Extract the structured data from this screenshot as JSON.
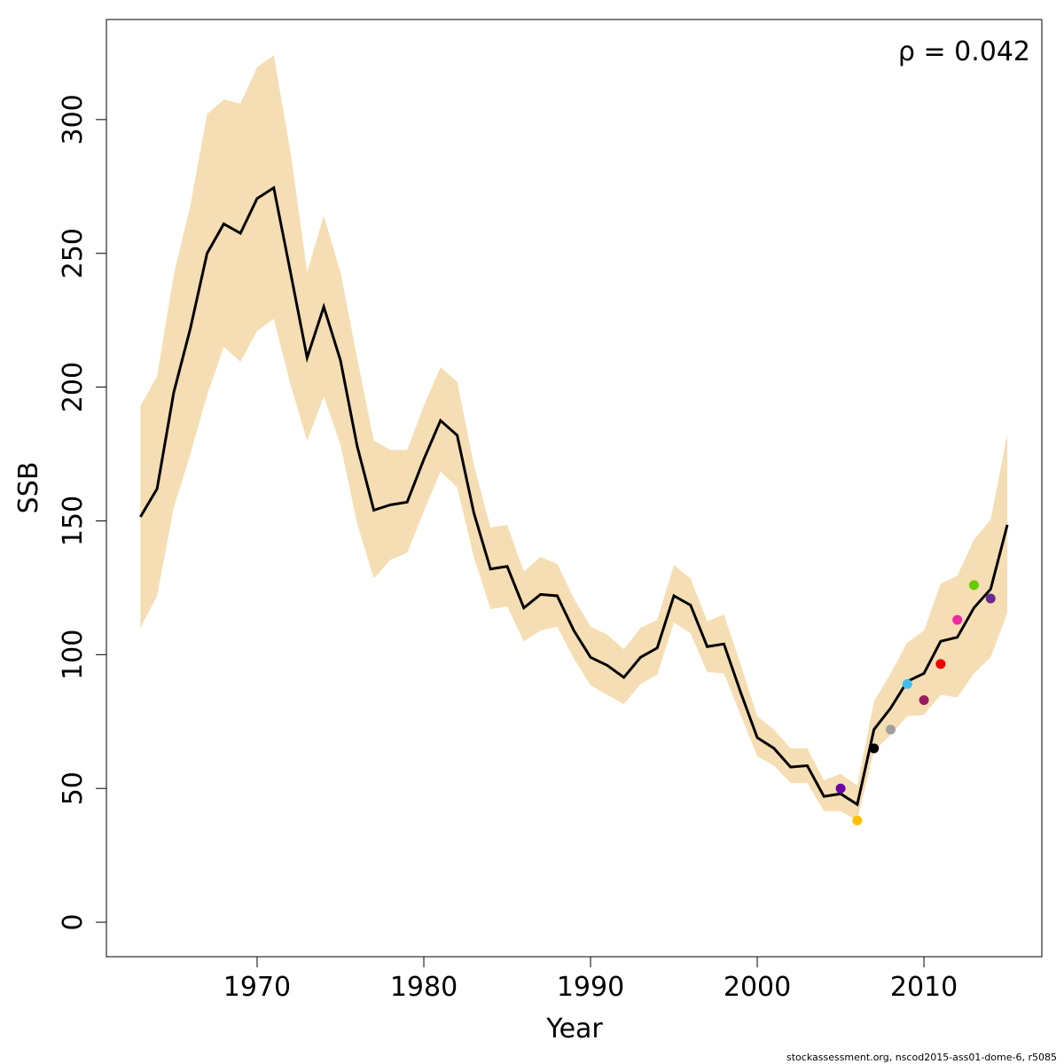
{
  "chart_data": {
    "type": "line",
    "xlabel": "Year",
    "ylabel": "SSB",
    "annotation": "ρ = 0.042",
    "footer": "stockassessment.org, nscod2015-ass01-dome-6, r5085",
    "xlim": [
      1960.96,
      2017.07
    ],
    "ylim": [
      -12.9,
      337.4
    ],
    "xticks": [
      1970,
      1980,
      1990,
      2000,
      2010
    ],
    "yticks": [
      0,
      50,
      100,
      150,
      200,
      250,
      300
    ],
    "x": [
      1963,
      1964,
      1965,
      1966,
      1967,
      1968,
      1969,
      1970,
      1971,
      1972,
      1973,
      1974,
      1975,
      1976,
      1977,
      1978,
      1979,
      1980,
      1981,
      1982,
      1983,
      1984,
      1985,
      1986,
      1987,
      1988,
      1989,
      1990,
      1991,
      1992,
      1993,
      1994,
      1995,
      1996,
      1997,
      1998,
      1999,
      2000,
      2001,
      2002,
      2003,
      2004,
      2005,
      2006,
      2007,
      2008,
      2009,
      2010,
      2011,
      2012,
      2013,
      2014,
      2015
    ],
    "band": {
      "color": "#f5deb3",
      "upper": [
        193,
        204,
        242,
        268,
        302,
        307.5,
        306,
        319.5,
        324,
        288,
        243,
        264,
        243,
        211,
        180,
        176.5,
        176.5,
        193,
        207.5,
        202,
        171,
        147.5,
        148.5,
        131,
        136.5,
        134,
        121,
        110.5,
        107.5,
        102,
        110,
        113,
        133.5,
        128.5,
        112.5,
        115,
        96.5,
        77,
        72,
        65,
        65,
        53,
        55.5,
        51,
        82.5,
        93,
        104.5,
        109,
        126.5,
        129.5,
        143,
        150.5,
        182.5
      ],
      "lower": [
        110,
        122,
        155,
        175,
        197,
        215,
        209.5,
        221,
        225.5,
        201,
        180,
        196.5,
        178.5,
        149,
        128.5,
        135.5,
        138,
        153.5,
        168.5,
        162.5,
        136.5,
        117,
        118,
        105,
        109,
        110.5,
        98.5,
        88.5,
        85,
        81.5,
        89,
        92.5,
        112,
        108,
        93.5,
        93,
        77.5,
        62,
        58.5,
        52,
        52,
        41.5,
        41.5,
        38,
        64,
        70,
        77,
        77.5,
        85,
        84,
        93,
        99,
        115.5
      ]
    },
    "series": [
      {
        "color": "#000000",
        "values": [
          151.5,
          162,
          198,
          222,
          250,
          261,
          257.5,
          270.5,
          274.5,
          243,
          211,
          230,
          210,
          178,
          154,
          156,
          157,
          173,
          187.5,
          182,
          153,
          132,
          133,
          117.5,
          122.5,
          122,
          109,
          99,
          96,
          91.5,
          99,
          102.5,
          122,
          118.5,
          103,
          104,
          86,
          69,
          65,
          58,
          58.5,
          47,
          48,
          44,
          72,
          80,
          90,
          93,
          105,
          106.5,
          117.5,
          124.5,
          148.5
        ]
      }
    ],
    "points": {
      "x": [
        2005,
        2006,
        2007,
        2008,
        2009,
        2010,
        2011,
        2012,
        2013,
        2014
      ],
      "values": [
        50,
        38,
        65,
        72,
        89,
        83,
        96.5,
        113,
        126,
        121
      ],
      "colors": [
        "#6a00a8",
        "#ffc000",
        "#000000",
        "#a0a0a0",
        "#3cc0f0",
        "#9c1c63",
        "#ee0000",
        "#ee2a9e",
        "#66cc00",
        "#6b2a8f"
      ]
    }
  }
}
